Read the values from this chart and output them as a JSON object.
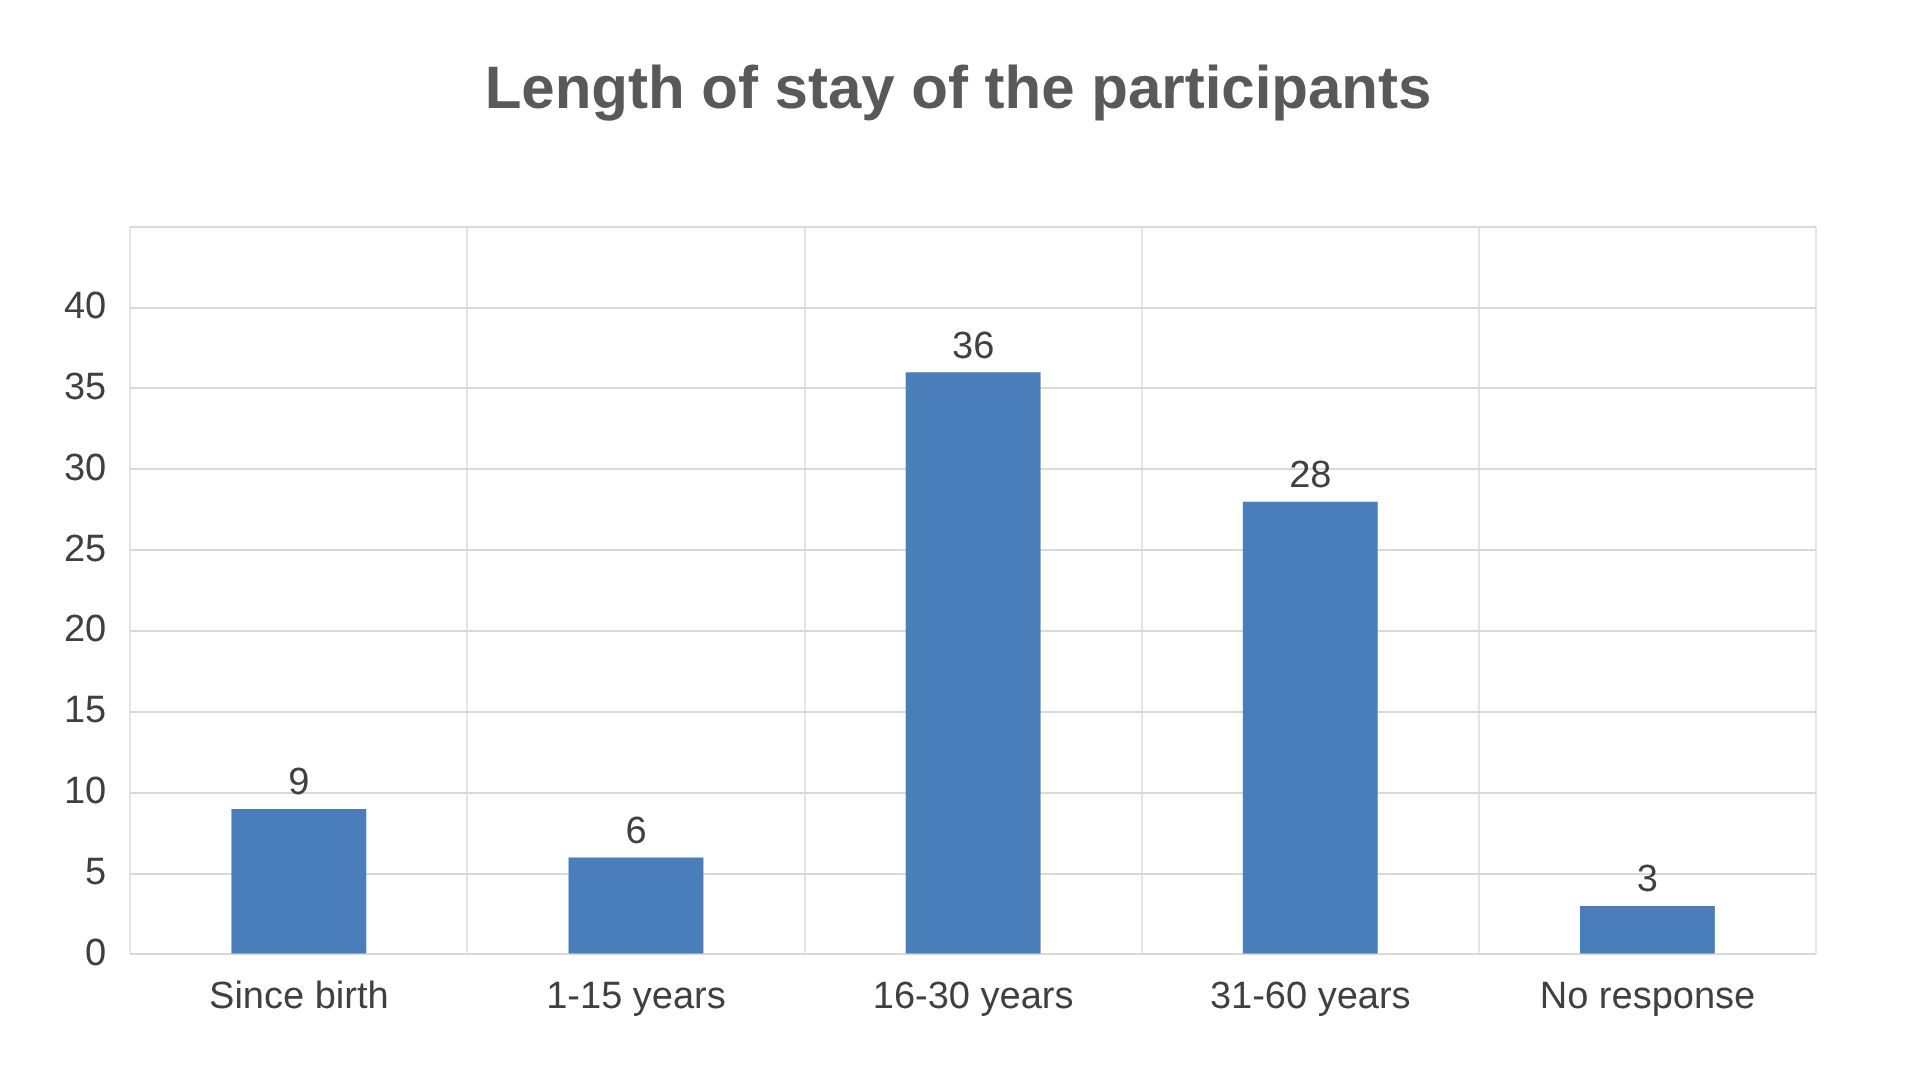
{
  "chart_data": {
    "type": "bar",
    "title": "Length of stay of the participants",
    "categories": [
      "Since birth",
      "1-15 years",
      "16-30 years",
      "31-60 years",
      "No response"
    ],
    "values": [
      9,
      6,
      36,
      28,
      3
    ],
    "color": "#4a7ebb",
    "ylim": [
      0,
      45
    ],
    "yticks": [
      0,
      5,
      10,
      15,
      20,
      25,
      30,
      35,
      40,
      {
        "value": 45,
        "label": null
      }
    ],
    "grid": true,
    "data_labels": true
  }
}
